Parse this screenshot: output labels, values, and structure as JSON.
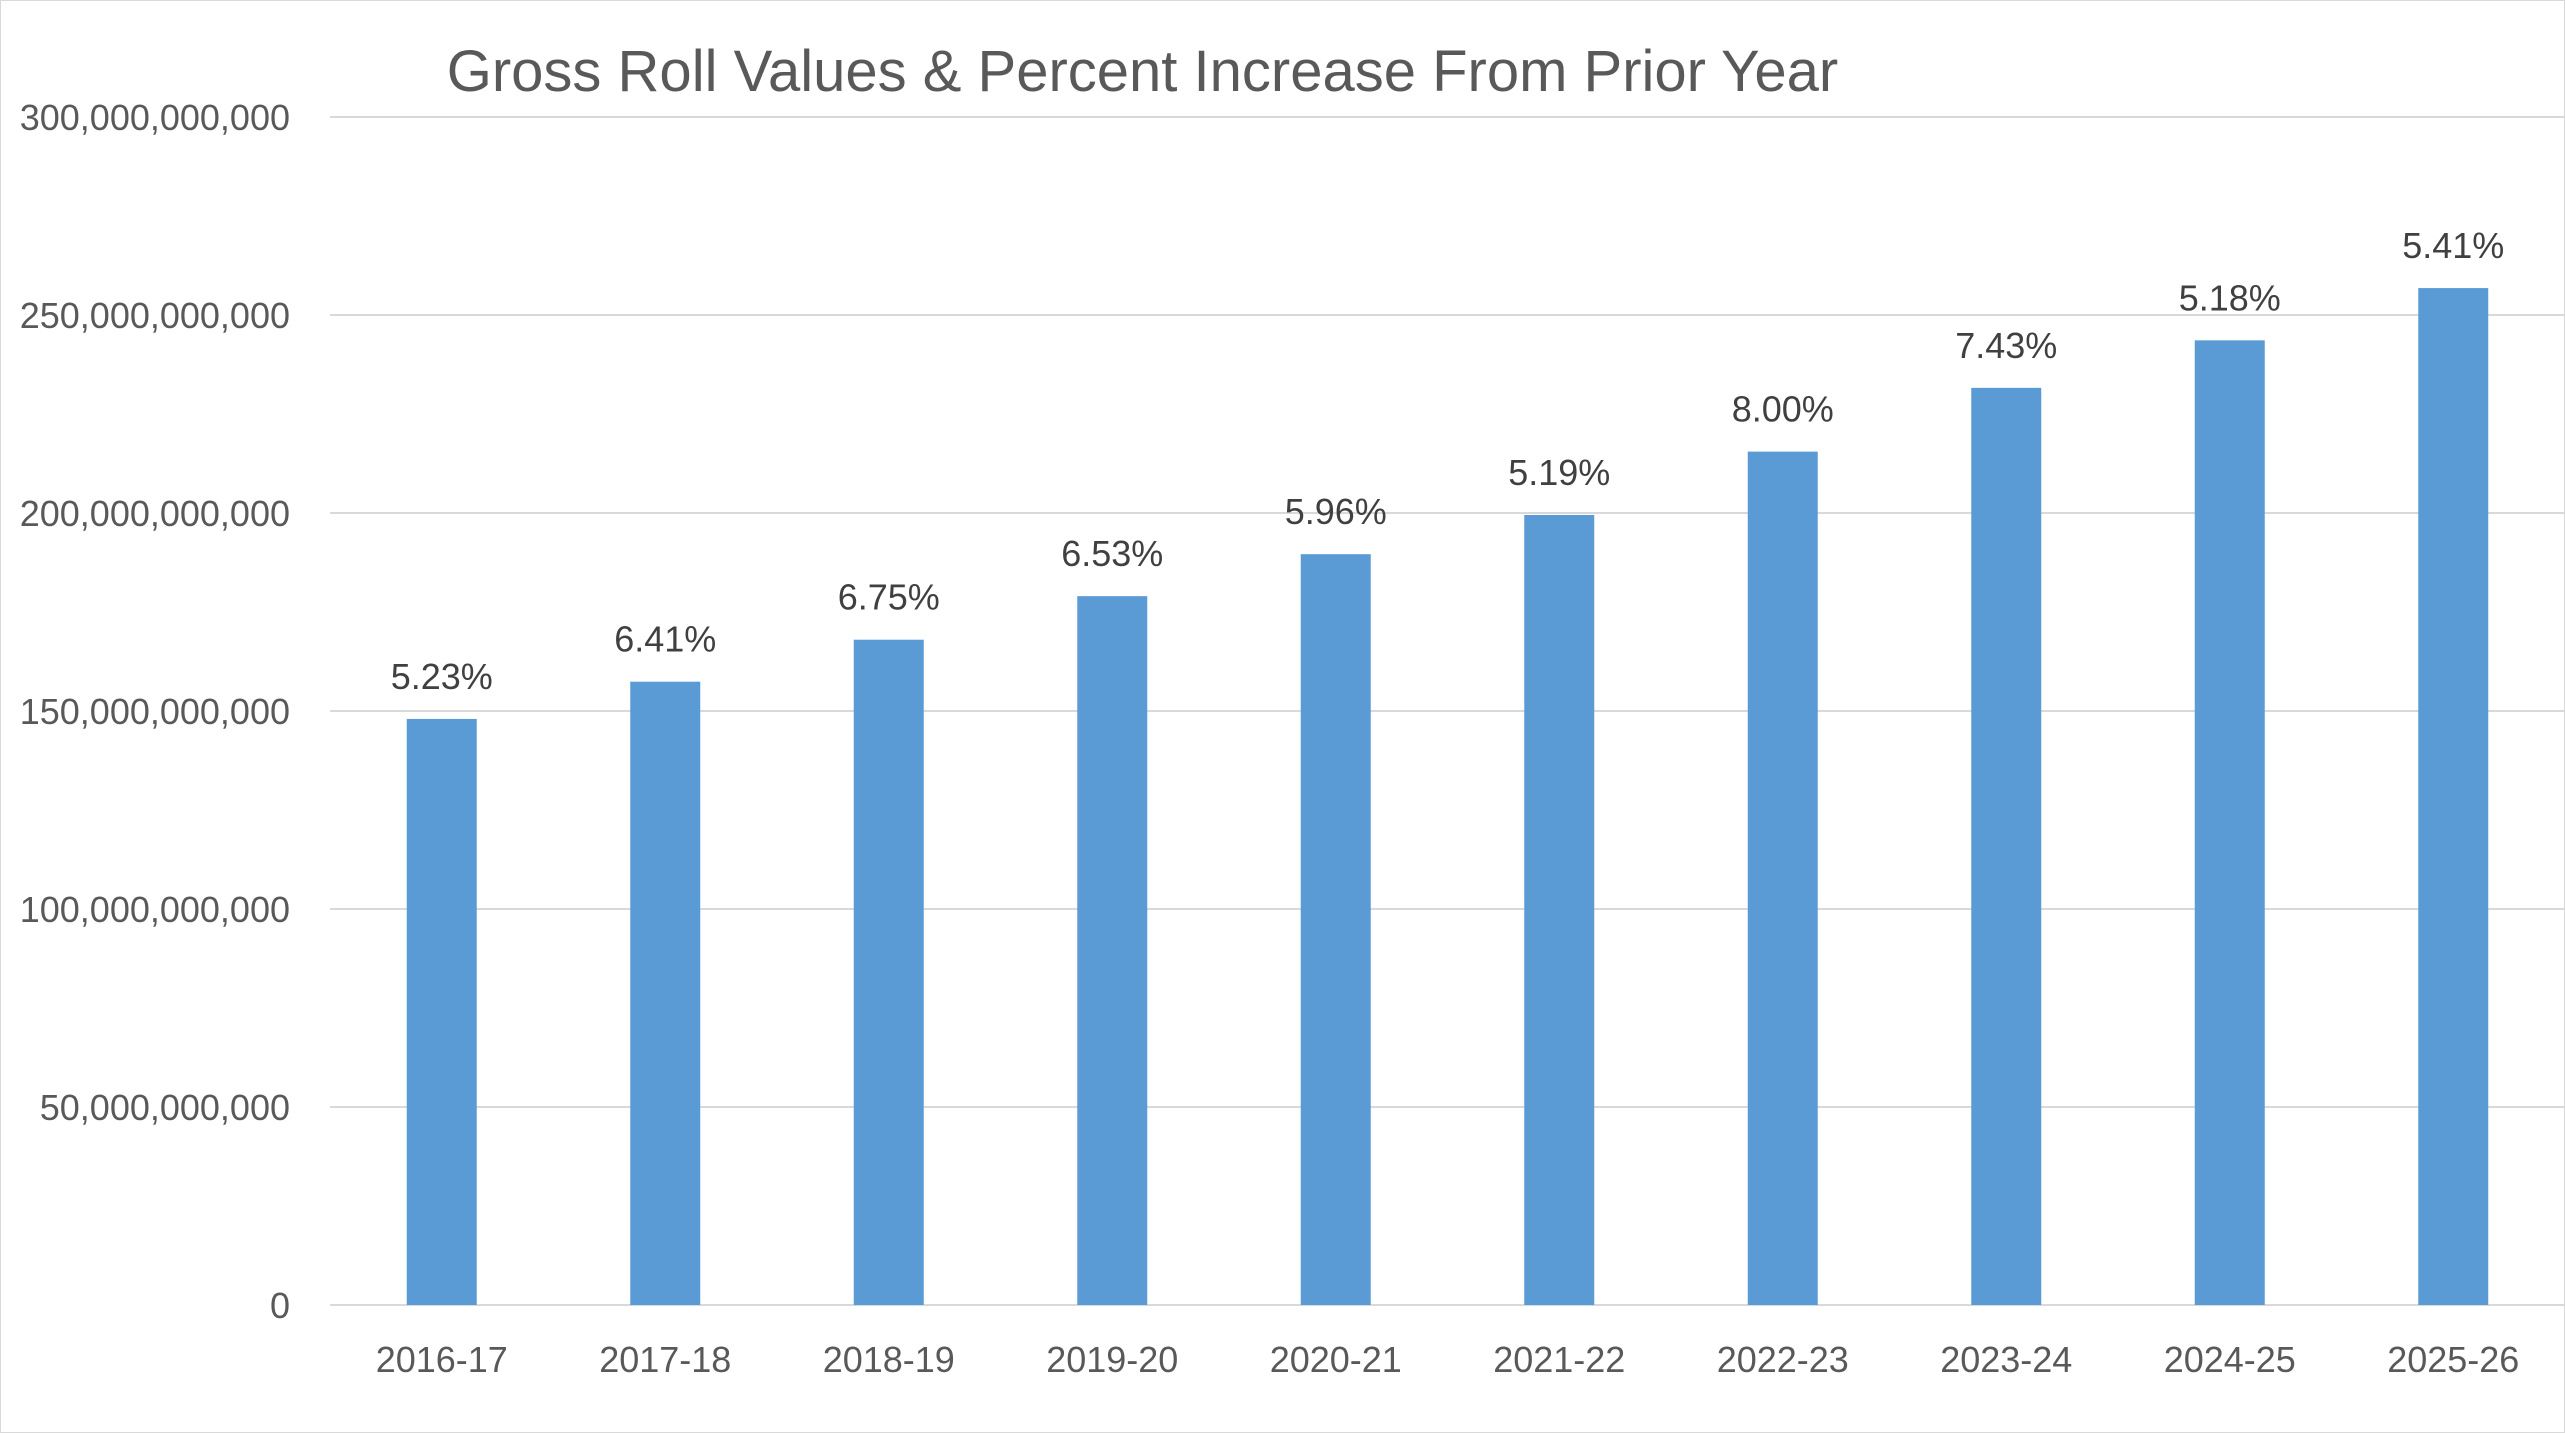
{
  "chart_data": {
    "type": "bar",
    "title": "Gross Roll Values & Percent Increase From Prior Year",
    "xlabel": "",
    "ylabel": "",
    "categories": [
      "2016-17",
      "2017-18",
      "2018-19",
      "2019-20",
      "2020-21",
      "2021-22",
      "2022-23",
      "2023-24",
      "2024-25",
      "2025-26"
    ],
    "values": [
      148000000000,
      157400000000,
      168000000000,
      179000000000,
      189600000000,
      199500000000,
      215500000000,
      231600000000,
      243600000000,
      256800000000
    ],
    "data_labels": [
      "5.23%",
      "6.41%",
      "6.75%",
      "6.53%",
      "5.96%",
      "5.19%",
      "8.00%",
      "7.43%",
      "5.18%",
      "5.41%"
    ],
    "ylim": [
      0,
      300000000000
    ],
    "yticks": [
      0,
      50000000000,
      100000000000,
      150000000000,
      200000000000,
      250000000000,
      300000000000
    ],
    "ytick_labels": [
      "0",
      "50,000,000,000",
      "100,000,000,000",
      "150,000,000,000",
      "200,000,000,000",
      "250,000,000,000",
      "300,000,000,000"
    ],
    "grid": true,
    "legend": "none",
    "bar_color": "#5b9bd5"
  }
}
